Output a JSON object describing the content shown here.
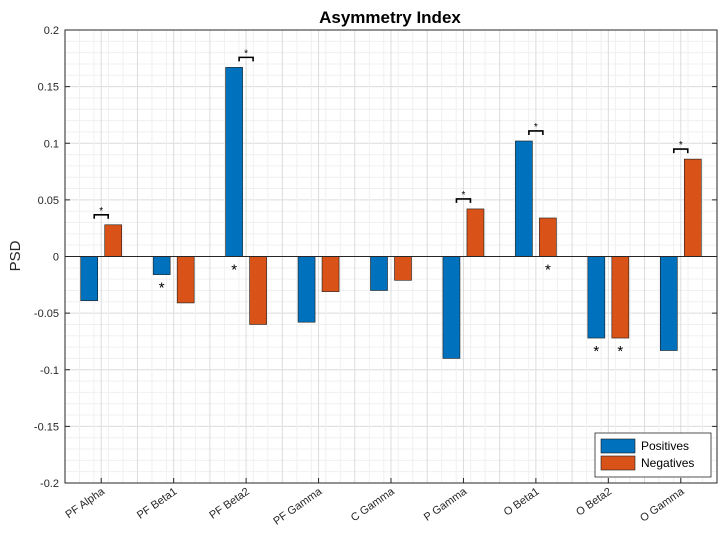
{
  "chart_data": {
    "type": "bar",
    "title": "Asymmetry Index",
    "xlabel": "",
    "ylabel": "PSD",
    "ylim": [
      -0.2,
      0.2
    ],
    "yticks": [
      "0.2",
      "0.15",
      "0.1",
      "0.05",
      "0",
      "-0.05",
      "-0.1",
      "-0.15",
      "-0.2"
    ],
    "yticks_values": [
      0.2,
      0.15,
      0.1,
      0.05,
      0,
      -0.05,
      -0.1,
      -0.15,
      -0.2
    ],
    "grid": true,
    "legend_position": "bottom-right",
    "categories": [
      "PF Alpha",
      "PF Beta1",
      "PF Beta2",
      "PF Gamma",
      "C Gamma",
      "P Gamma",
      "O Beta1",
      "O Beta2",
      "O Gamma"
    ],
    "series": [
      {
        "name": "Positives",
        "color": "#0072BD",
        "values": [
          -0.039,
          -0.016,
          0.167,
          -0.058,
          -0.03,
          -0.09,
          0.102,
          -0.072,
          -0.083
        ],
        "significance": [
          "",
          "*",
          "*",
          "",
          "",
          "",
          "",
          "*",
          ""
        ]
      },
      {
        "name": "Negatives",
        "color": "#D95319",
        "values": [
          0.028,
          -0.041,
          -0.06,
          -0.031,
          -0.021,
          0.042,
          0.034,
          -0.072,
          0.086
        ],
        "significance": [
          "",
          "",
          "",
          "",
          "",
          "",
          "*",
          "*",
          ""
        ]
      }
    ],
    "pair_significance": [
      "*",
      "",
      "*",
      "",
      "",
      "*",
      "*",
      "",
      "*"
    ]
  }
}
